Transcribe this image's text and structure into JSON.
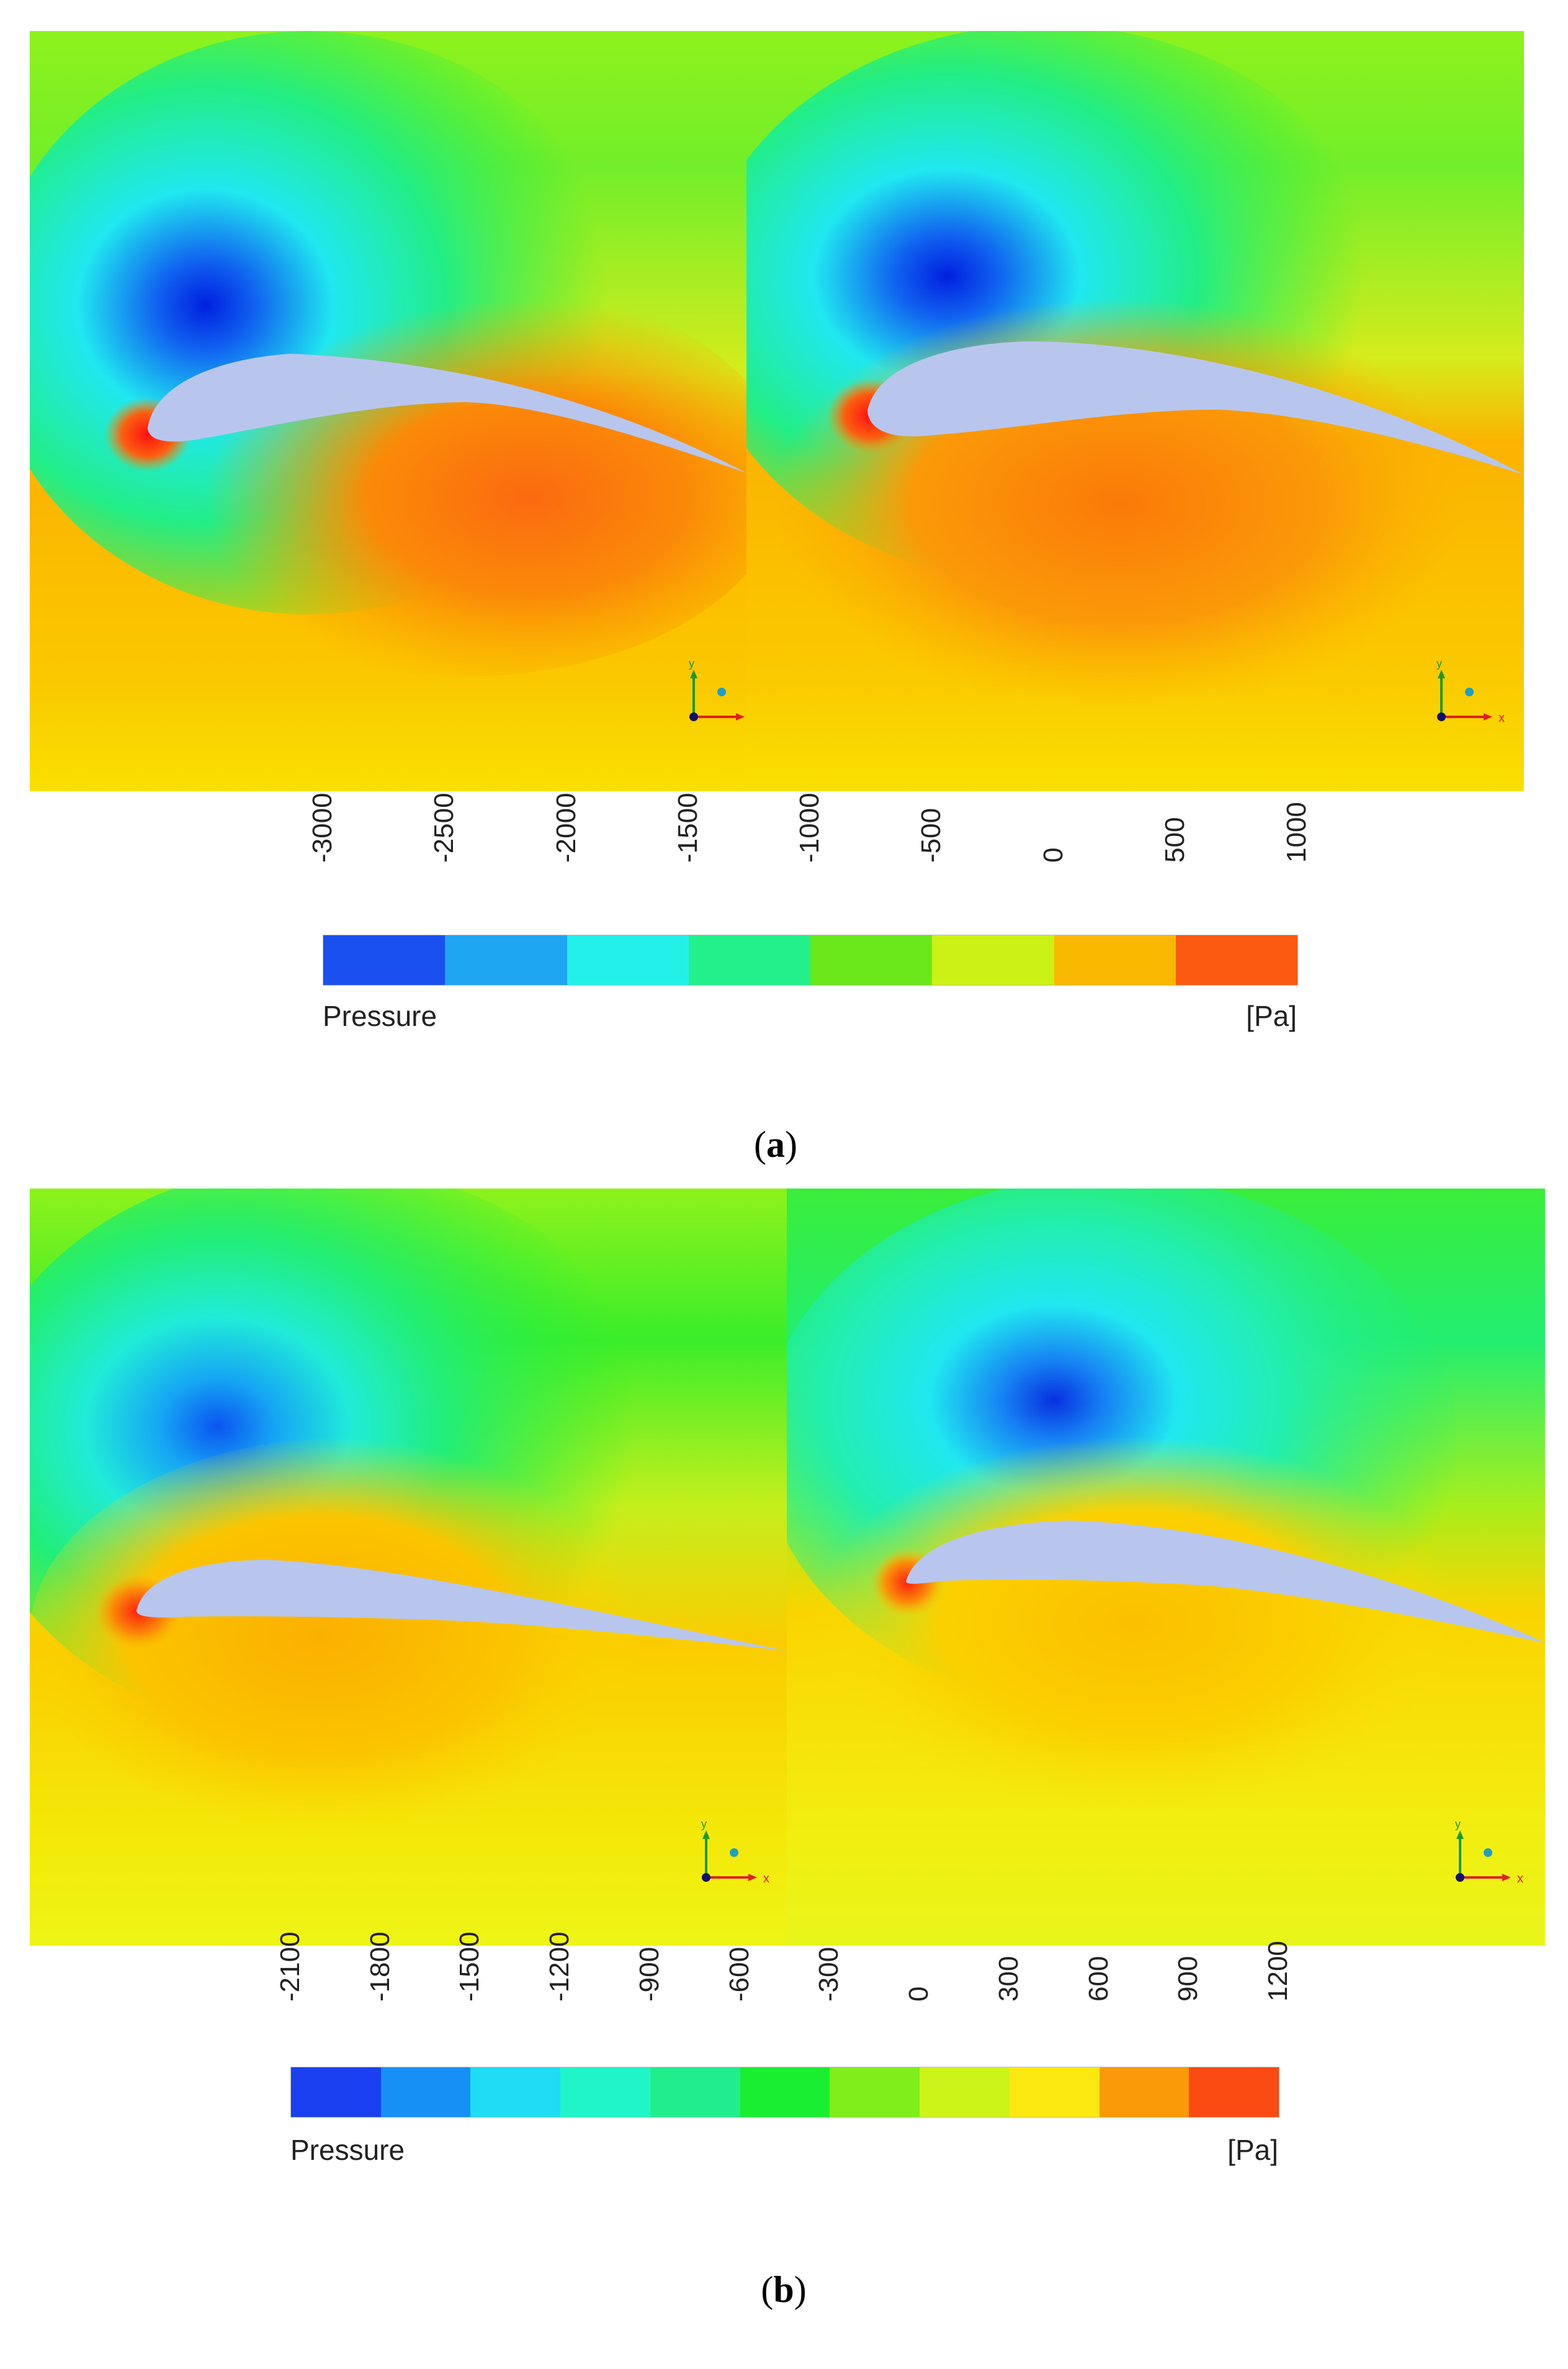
{
  "figure": {
    "panel_a": {
      "caption_open": "(",
      "caption_letter": "a",
      "caption_close": ")",
      "legend": {
        "title": "Pressure",
        "unit": "[Pa]",
        "ticks": [
          "-3000",
          "-2500",
          "-2000",
          "-1500",
          "-1000",
          "-500",
          "0",
          "500",
          "1000"
        ],
        "band_colors": [
          "#1a4ff0",
          "#1ea6f2",
          "#22f0e8",
          "#22f08a",
          "#6ae81c",
          "#ccf215",
          "#fbb800",
          "#fb5a10"
        ]
      },
      "plots": [
        {
          "axis_x": "x",
          "axis_y": "y"
        },
        {
          "axis_x": "x",
          "axis_y": "y"
        }
      ]
    },
    "panel_b": {
      "caption_open": "(",
      "caption_letter": "b",
      "caption_close": ")",
      "legend": {
        "title": "Pressure",
        "unit": "[Pa]",
        "ticks": [
          "-2100",
          "-1800",
          "-1500",
          "-1200",
          "-900",
          "-600",
          "-300",
          "0",
          "300",
          "600",
          "900",
          "1200"
        ],
        "band_colors": [
          "#1a40f0",
          "#1690f5",
          "#20dcf5",
          "#20f5c8",
          "#20ee8c",
          "#1aee30",
          "#80ee1a",
          "#ccf418",
          "#fbe810",
          "#fb9a08",
          "#fb4a12"
        ]
      },
      "plots": [
        {
          "axis_x": "x",
          "axis_y": "y"
        },
        {
          "axis_x": "x",
          "axis_y": "y"
        }
      ]
    }
  }
}
